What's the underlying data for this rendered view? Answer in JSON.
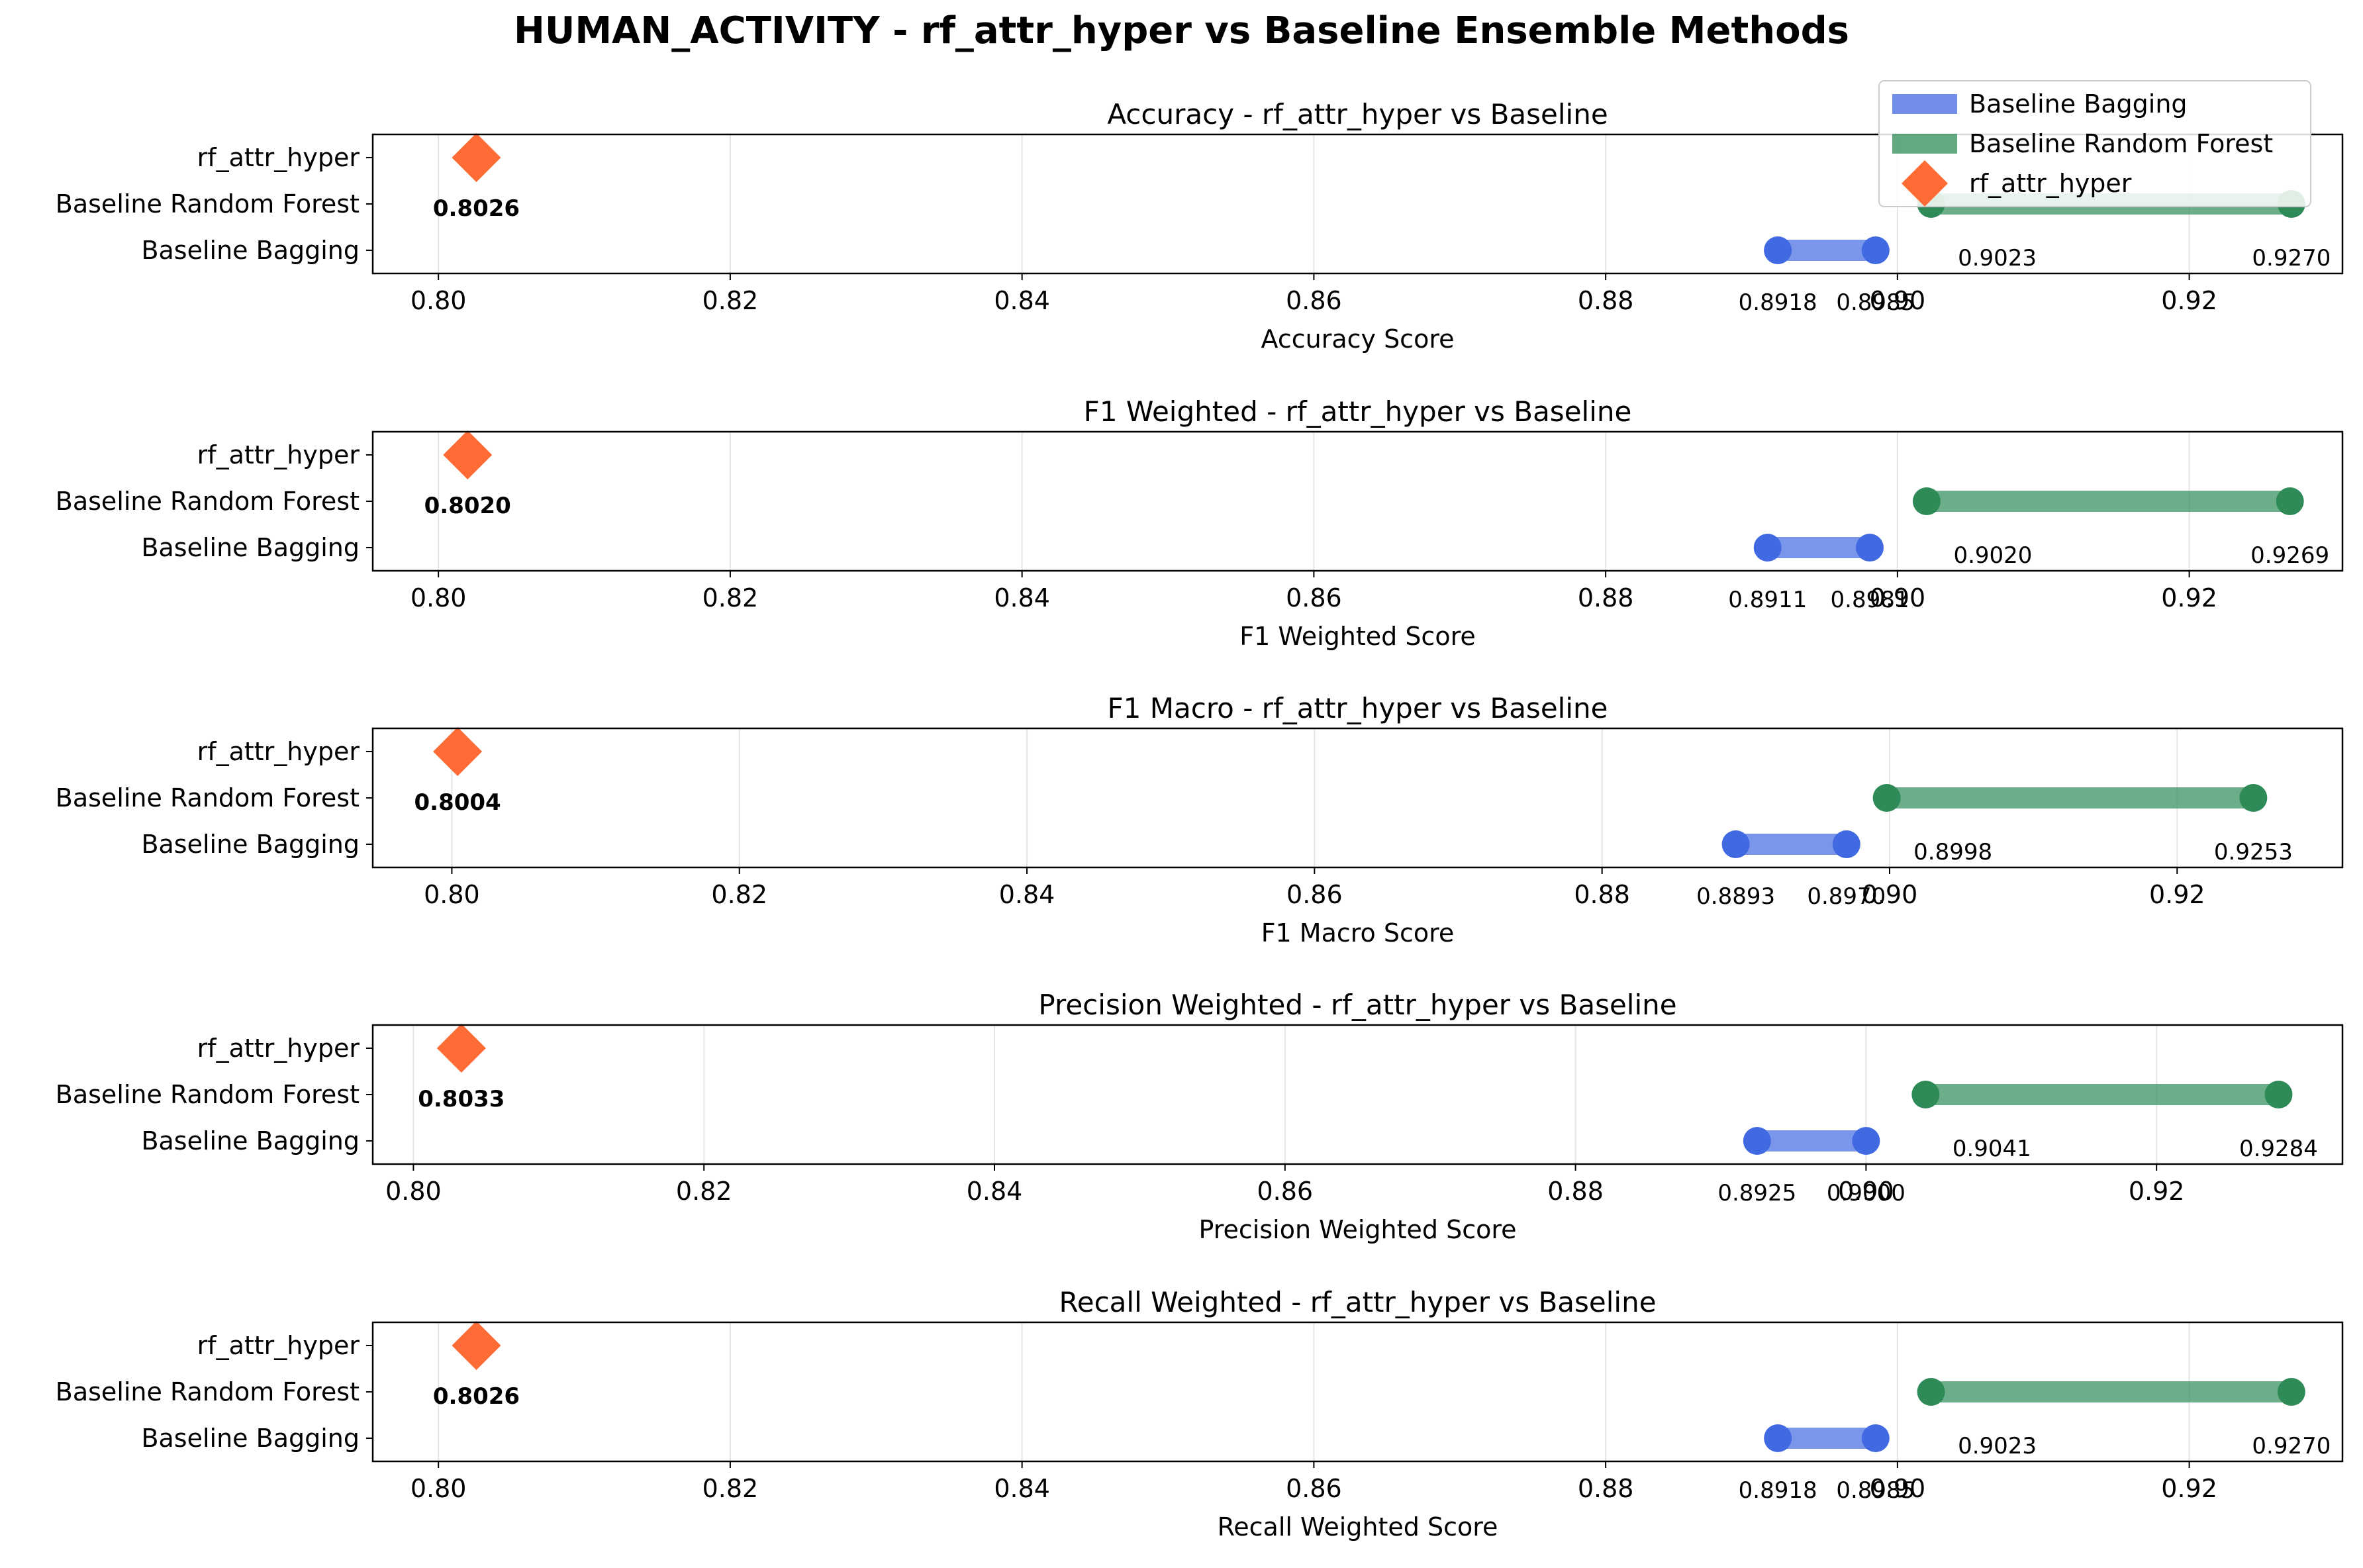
{
  "figure": {
    "title": "HUMAN_ACTIVITY - rf_attr_hyper vs Baseline Ensemble Methods"
  },
  "legend": {
    "placement": "top-right",
    "entries": [
      {
        "label": "Baseline Bagging",
        "color": "#4169E1",
        "marker": "bar"
      },
      {
        "label": "Baseline Random Forest",
        "color": "#2E8B57",
        "marker": "bar"
      },
      {
        "label": "rf_attr_hyper",
        "color": "#FF6B35",
        "marker": "diamond"
      }
    ]
  },
  "colors": {
    "bagging": "#4169E1",
    "random_forest": "#2E8B57",
    "rf_attr_hyper": "#FF6B35",
    "grid": "#e6e6e6"
  },
  "chart_data": [
    {
      "type": "dumbbell",
      "title": "Accuracy - rf_attr_hyper vs Baseline",
      "xlabel": "Accuracy Score",
      "categories": [
        "rf_attr_hyper",
        "Baseline Random Forest",
        "Baseline Bagging"
      ],
      "xlim": [
        0.7955,
        0.9305
      ],
      "xticks": [
        "0.80",
        "0.82",
        "0.84",
        "0.86",
        "0.88",
        "0.90",
        "0.92"
      ],
      "grid": true,
      "series": [
        {
          "name": "Baseline Bagging",
          "min": 0.8918,
          "max": 0.8985,
          "min_label": "0.8918",
          "max_label": "0.8985"
        },
        {
          "name": "Baseline Random Forest",
          "min": 0.9023,
          "max": 0.927,
          "min_label": "0.9023",
          "max_label": "0.9270"
        },
        {
          "name": "rf_attr_hyper",
          "value": 0.8026,
          "label": "0.8026"
        }
      ]
    },
    {
      "type": "dumbbell",
      "title": "F1 Weighted - rf_attr_hyper vs Baseline",
      "xlabel": "F1 Weighted Score",
      "categories": [
        "rf_attr_hyper",
        "Baseline Random Forest",
        "Baseline Bagging"
      ],
      "xlim": [
        0.7955,
        0.9305
      ],
      "xticks": [
        "0.80",
        "0.82",
        "0.84",
        "0.86",
        "0.88",
        "0.90",
        "0.92"
      ],
      "grid": true,
      "series": [
        {
          "name": "Baseline Bagging",
          "min": 0.8911,
          "max": 0.8981,
          "min_label": "0.8911",
          "max_label": "0.8981"
        },
        {
          "name": "Baseline Random Forest",
          "min": 0.902,
          "max": 0.9269,
          "min_label": "0.9020",
          "max_label": "0.9269"
        },
        {
          "name": "rf_attr_hyper",
          "value": 0.802,
          "label": "0.8020"
        }
      ]
    },
    {
      "type": "dumbbell",
      "title": "F1 Macro - rf_attr_hyper vs Baseline",
      "xlabel": "F1 Macro Score",
      "categories": [
        "rf_attr_hyper",
        "Baseline Random Forest",
        "Baseline Bagging"
      ],
      "xlim": [
        0.7945,
        0.9315
      ],
      "xticks": [
        "0.80",
        "0.82",
        "0.84",
        "0.86",
        "0.88",
        "0.90",
        "0.92"
      ],
      "grid": true,
      "series": [
        {
          "name": "Baseline Bagging",
          "min": 0.8893,
          "max": 0.897,
          "min_label": "0.8893",
          "max_label": "0.8970"
        },
        {
          "name": "Baseline Random Forest",
          "min": 0.8998,
          "max": 0.9253,
          "min_label": "0.8998",
          "max_label": "0.9253"
        },
        {
          "name": "rf_attr_hyper",
          "value": 0.8004,
          "label": "0.8004"
        }
      ]
    },
    {
      "type": "dumbbell",
      "title": "Precision Weighted - rf_attr_hyper vs Baseline",
      "xlabel": "Precision Weighted Score",
      "categories": [
        "rf_attr_hyper",
        "Baseline Random Forest",
        "Baseline Bagging"
      ],
      "xlim": [
        0.7972,
        0.9328
      ],
      "xticks": [
        "0.80",
        "0.82",
        "0.84",
        "0.86",
        "0.88",
        "0.90",
        "0.92"
      ],
      "grid": true,
      "series": [
        {
          "name": "Baseline Bagging",
          "min": 0.8925,
          "max": 0.9,
          "min_label": "0.8925",
          "max_label": "0.9000"
        },
        {
          "name": "Baseline Random Forest",
          "min": 0.9041,
          "max": 0.9284,
          "min_label": "0.9041",
          "max_label": "0.9284"
        },
        {
          "name": "rf_attr_hyper",
          "value": 0.8033,
          "label": "0.8033"
        }
      ]
    },
    {
      "type": "dumbbell",
      "title": "Recall Weighted - rf_attr_hyper vs Baseline",
      "xlabel": "Recall Weighted Score",
      "categories": [
        "rf_attr_hyper",
        "Baseline Random Forest",
        "Baseline Bagging"
      ],
      "xlim": [
        0.7955,
        0.9305
      ],
      "xticks": [
        "0.80",
        "0.82",
        "0.84",
        "0.86",
        "0.88",
        "0.90",
        "0.92"
      ],
      "grid": true,
      "series": [
        {
          "name": "Baseline Bagging",
          "min": 0.8918,
          "max": 0.8985,
          "min_label": "0.8918",
          "max_label": "0.8985"
        },
        {
          "name": "Baseline Random Forest",
          "min": 0.9023,
          "max": 0.927,
          "min_label": "0.9023",
          "max_label": "0.9270"
        },
        {
          "name": "rf_attr_hyper",
          "value": 0.8026,
          "label": "0.8026"
        }
      ]
    }
  ]
}
